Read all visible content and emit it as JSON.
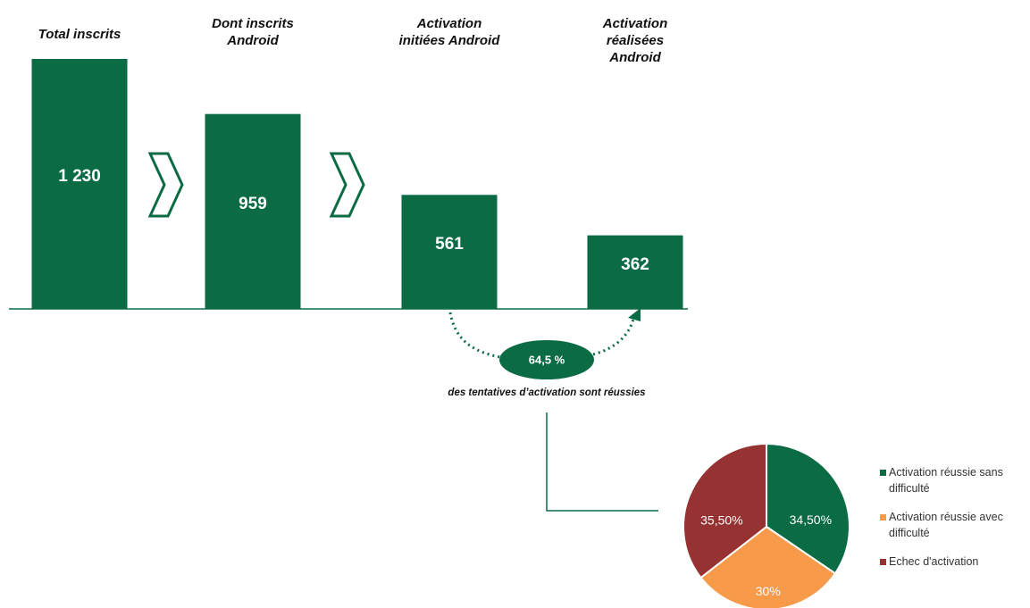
{
  "chart_data": [
    {
      "type": "bar",
      "categories": [
        "Total inscrits",
        "Dont inscrits Android",
        "Activation initiées Android",
        "Activation réalisées Android"
      ],
      "values": [
        1230,
        959,
        561,
        362
      ],
      "value_labels": [
        "1 230",
        "959",
        "561",
        "362"
      ],
      "color": "#0a6b45",
      "annotations": [
        "64,5 %",
        "des tentatives d’activation sont réussies"
      ]
    },
    {
      "type": "pie",
      "categories": [
        "Activation réussie sans difficulté",
        "Activation réussie avec difficulté",
        "Echec d'activation"
      ],
      "values": [
        34.5,
        30,
        35.5
      ],
      "value_labels": [
        "34,50%",
        "30%",
        "35,50%"
      ],
      "colors": [
        "#0a6b45",
        "#f79b4b",
        "#963232"
      ]
    }
  ]
}
